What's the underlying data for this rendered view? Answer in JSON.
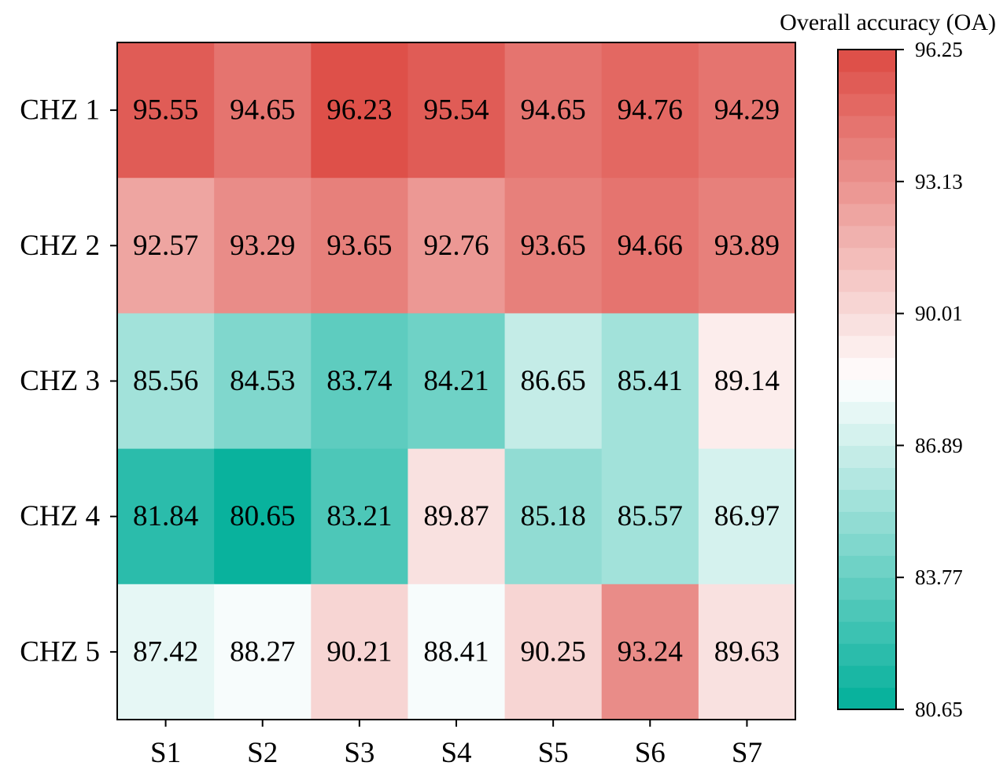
{
  "chart_data": {
    "type": "heatmap",
    "title": "",
    "xlabel": "",
    "ylabel": "",
    "x_categories": [
      "S1",
      "S2",
      "S3",
      "S4",
      "S5",
      "S6",
      "S7"
    ],
    "y_categories": [
      "CHZ 1",
      "CHZ 2",
      "CHZ 3",
      "CHZ 4",
      "CHZ 5"
    ],
    "values": [
      [
        95.55,
        94.65,
        96.23,
        95.54,
        94.65,
        94.76,
        94.29
      ],
      [
        92.57,
        93.29,
        93.65,
        92.76,
        93.65,
        94.66,
        93.89
      ],
      [
        85.56,
        84.53,
        83.74,
        84.21,
        86.65,
        85.41,
        89.14
      ],
      [
        81.84,
        80.65,
        83.21,
        89.87,
        85.18,
        85.57,
        86.97
      ],
      [
        87.42,
        88.27,
        90.21,
        88.41,
        90.25,
        93.24,
        89.63
      ]
    ],
    "cell_labels": [
      [
        "95.55",
        "94.65",
        "96.23",
        "95.54",
        "94.65",
        "94.76",
        "94.29"
      ],
      [
        "92.57",
        "93.29",
        "93.65",
        "92.76",
        "93.65",
        "94.66",
        "93.89"
      ],
      [
        "85.56",
        "84.53",
        "83.74",
        "84.21",
        "86.65",
        "85.41",
        "89.14"
      ],
      [
        "81.84",
        "80.65",
        "83.21",
        "89.87",
        "85.18",
        "85.57",
        "86.97"
      ],
      [
        "87.42",
        "88.27",
        "90.21",
        "88.41",
        "90.25",
        "93.24",
        "89.63"
      ]
    ],
    "colorbar": {
      "title": "Overall accuracy (OA)",
      "range": [
        80.65,
        96.25
      ],
      "ticks": [
        80.65,
        83.77,
        86.89,
        90.01,
        93.13,
        96.25
      ],
      "tick_labels": [
        "80.65",
        "83.77",
        "86.89",
        "90.01",
        "93.13",
        "96.25"
      ],
      "levels": 30,
      "colors": {
        "low": "#00AF9A",
        "mid": "#FFFFFF",
        "high": "#DD4A43"
      }
    }
  }
}
